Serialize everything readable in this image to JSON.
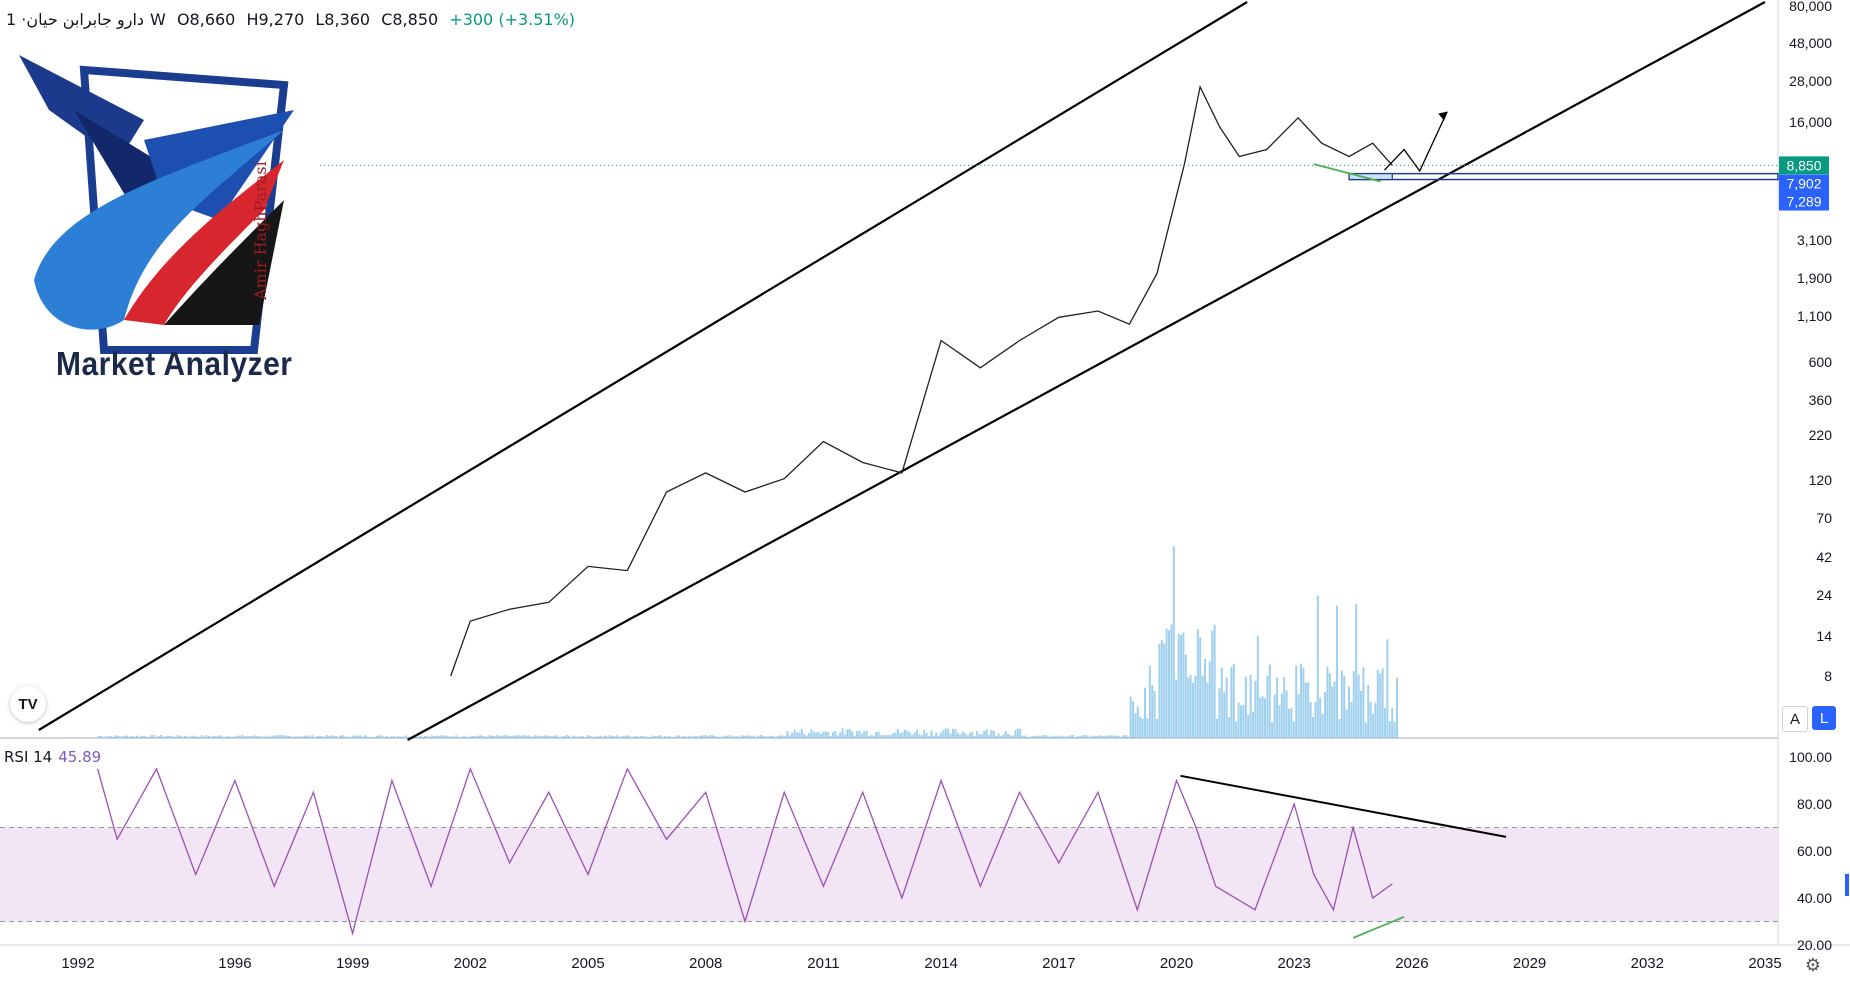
{
  "header": {
    "symbol": "دارو جابرابن حیان",
    "interval": "· 1W",
    "open": "O8,660",
    "high": "H9,270",
    "low": "L8,360",
    "close": "C8,850",
    "change": "+300 (+3.51%)"
  },
  "logo": {
    "text": "Market Analyzer",
    "signature": "Amir HaghParasi"
  },
  "controls": {
    "tv_logo": "TV",
    "scale_auto": "A",
    "scale_log": "L",
    "settings_icon": "gear-icon"
  },
  "colors": {
    "rsi_line": "#9c4fb6",
    "rsi_band": "#f2e6f5",
    "price_badge": "#089981",
    "zone_badge": "#2962ff",
    "volume": "#7fc0e8"
  },
  "chart_data": [
    {
      "type": "line",
      "name": "price",
      "scale": "log",
      "x": [
        2001.5,
        2002,
        2003,
        2004,
        2005,
        2006,
        2007,
        2008,
        2009,
        2010,
        2011,
        2012,
        2013,
        2014,
        2015,
        2016,
        2017,
        2018,
        2018.8,
        2019.5,
        2020.2,
        2020.6,
        2021.1,
        2021.6,
        2022.3,
        2023.1,
        2023.7,
        2024.4,
        2025.0,
        2025.5
      ],
      "y": [
        8,
        17,
        20,
        22,
        36,
        34,
        100,
        130,
        100,
        120,
        200,
        150,
        130,
        800,
        550,
        800,
        1100,
        1200,
        1000,
        2000,
        9000,
        26000,
        15000,
        10000,
        11000,
        17000,
        12000,
        10000,
        12000,
        8850
      ],
      "ylim": [
        5,
        80000
      ],
      "y_ticks": [
        "80,000",
        "48,000",
        "28,000",
        "16,000",
        "3,100",
        "1,900",
        "1,100",
        "600",
        "360",
        "220",
        "120",
        "70",
        "42",
        "24",
        "14",
        "8"
      ],
      "x_ticks": [
        "1992",
        "1996",
        "1999",
        "2002",
        "2005",
        "2008",
        "2011",
        "2014",
        "2017",
        "2020",
        "2023",
        "2026",
        "2029",
        "2032",
        "2035"
      ],
      "price_labels": [
        "8,850",
        "7,902",
        "7,289"
      ],
      "last_price": 8850,
      "support_zone": [
        7289,
        7902
      ]
    },
    {
      "type": "line",
      "name": "RSI 14",
      "value_label": "45.89",
      "last_value": 45.89,
      "ylim": [
        20,
        100
      ],
      "y_ticks": [
        "100.00",
        "80.00",
        "60.00",
        "40.00",
        "20.00"
      ],
      "bands": [
        30,
        70
      ],
      "x": [
        1992.5,
        1993,
        1994,
        1995,
        1996,
        1997,
        1998,
        1999,
        2000,
        2001,
        2002,
        2003,
        2004,
        2005,
        2006,
        2007,
        2008,
        2009,
        2010,
        2011,
        2012,
        2013,
        2014,
        2015,
        2016,
        2017,
        2018,
        2019,
        2020,
        2020.5,
        2021,
        2022,
        2023,
        2023.5,
        2024,
        2024.5,
        2025,
        2025.5
      ],
      "y": [
        95,
        65,
        95,
        50,
        90,
        45,
        85,
        25,
        90,
        45,
        95,
        55,
        85,
        50,
        95,
        65,
        85,
        30,
        85,
        45,
        85,
        40,
        90,
        45,
        85,
        55,
        85,
        35,
        90,
        70,
        45,
        35,
        80,
        50,
        35,
        70,
        40,
        46
      ]
    }
  ]
}
